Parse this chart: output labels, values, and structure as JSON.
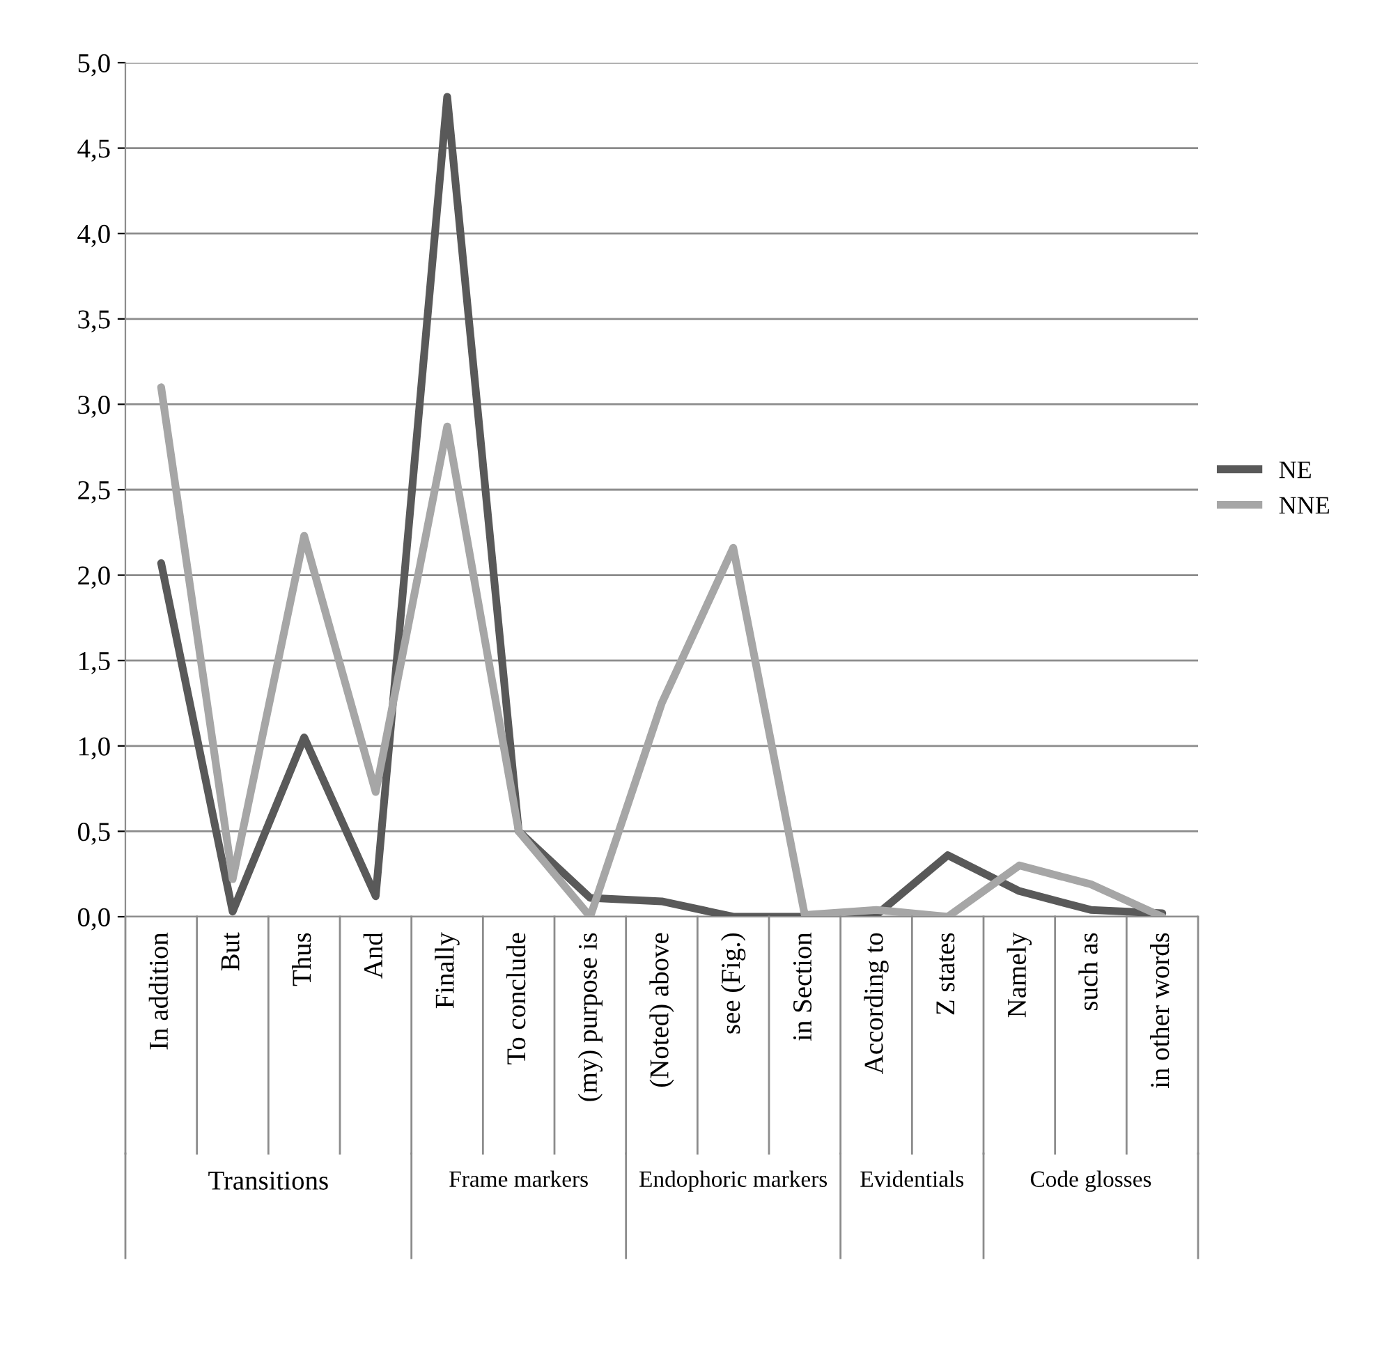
{
  "chart_data": {
    "type": "line",
    "categories": [
      "In addition",
      "But",
      "Thus",
      "And",
      "Finally",
      "To conclude",
      "(my) purpose is",
      "(Noted) above",
      "see (Fig.)",
      "in Section",
      "According to",
      "Z states",
      "Namely",
      "such as",
      "in other words"
    ],
    "series": [
      {
        "name": "NE",
        "color": "#595959",
        "values": [
          2.07,
          0.03,
          1.05,
          0.12,
          4.8,
          0.5,
          0.11,
          0.09,
          0.0,
          0.0,
          0.01,
          0.36,
          0.15,
          0.04,
          0.02
        ]
      },
      {
        "name": "NNE",
        "color": "#a6a6a6",
        "values": [
          3.1,
          0.22,
          2.23,
          0.73,
          2.87,
          0.5,
          0.0,
          1.25,
          2.16,
          0.01,
          0.04,
          0.0,
          0.3,
          0.19,
          0.0
        ]
      }
    ],
    "ylim": [
      0,
      5
    ],
    "yticks": [
      {
        "value": 0,
        "label": "0,0"
      },
      {
        "value": 0.5,
        "label": "0,5"
      },
      {
        "value": 1,
        "label": "1,0"
      },
      {
        "value": 1.5,
        "label": "1,5"
      },
      {
        "value": 2,
        "label": "2,0"
      },
      {
        "value": 2.5,
        "label": "2,5"
      },
      {
        "value": 3,
        "label": "3,0"
      },
      {
        "value": 3.5,
        "label": "3,5"
      },
      {
        "value": 4,
        "label": "4,0"
      },
      {
        "value": 4.5,
        "label": "4,5"
      },
      {
        "value": 5,
        "label": "5,0"
      }
    ],
    "grid": "y",
    "legend": "right",
    "marker": "none",
    "line_style": "solid",
    "annotations": [
      "Transitions",
      "Frame markers",
      "Endophoric markers",
      "Evidentials",
      "Code glosses"
    ]
  }
}
